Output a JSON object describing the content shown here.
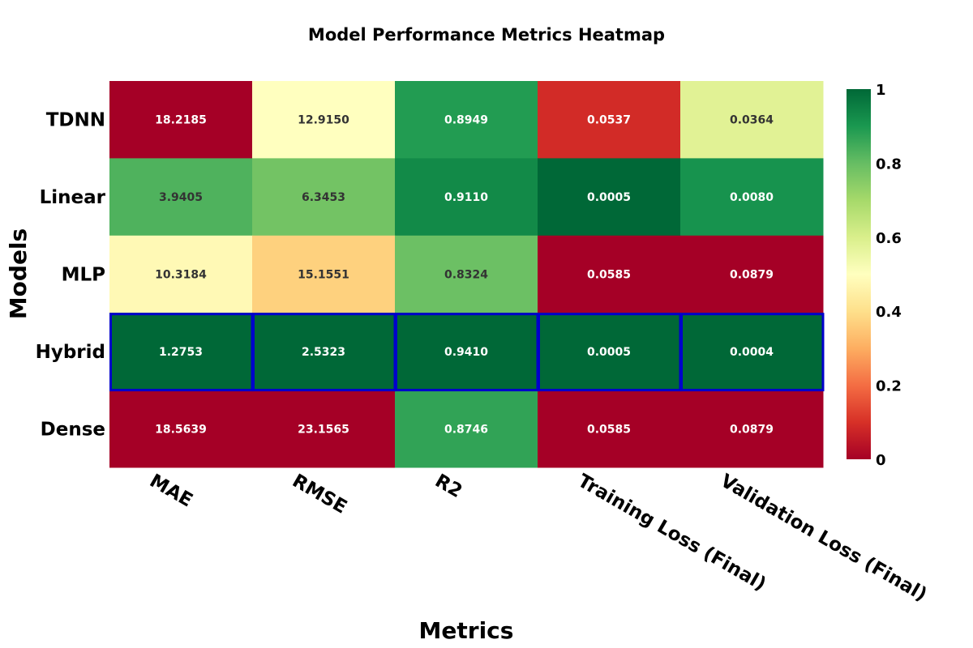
{
  "chart_data": {
    "type": "heatmap",
    "title": "Model Performance Metrics Heatmap",
    "xlabel": "Metrics",
    "ylabel": "Models",
    "x_categories": [
      "MAE",
      "RMSE",
      "R2",
      "Training Loss (Final)",
      "Validation Loss (Final)"
    ],
    "y_categories": [
      "TDNN",
      "Linear",
      "MLP",
      "Hybrid",
      "Dense"
    ],
    "values": [
      [
        18.2185,
        12.915,
        0.8949,
        0.0537,
        0.0364
      ],
      [
        3.9405,
        6.3453,
        0.911,
        0.0005,
        0.008
      ],
      [
        10.3184,
        15.1551,
        0.8324,
        0.0585,
        0.0879
      ],
      [
        1.2753,
        2.5323,
        0.941,
        0.0005,
        0.0004
      ],
      [
        18.5639,
        23.1565,
        0.8746,
        0.0585,
        0.0879
      ]
    ],
    "cell_labels": [
      [
        "18.2185",
        "12.9150",
        "0.8949",
        "0.0537",
        "0.0364"
      ],
      [
        "3.9405",
        "6.3453",
        "0.9110",
        "0.0005",
        "0.0080"
      ],
      [
        "10.3184",
        "15.1551",
        "0.8324",
        "0.0585",
        "0.0879"
      ],
      [
        "1.2753",
        "2.5323",
        "0.9410",
        "0.0005",
        "0.0004"
      ],
      [
        "18.5639",
        "23.1565",
        "0.8746",
        "0.0585",
        "0.0879"
      ]
    ],
    "color_scores": [
      [
        0.0,
        0.5,
        0.89,
        0.09,
        0.58
      ],
      [
        0.83,
        0.78,
        0.93,
        1.0,
        0.91
      ],
      [
        0.48,
        0.37,
        0.79,
        0.0,
        0.0
      ],
      [
        1.0,
        1.0,
        1.0,
        1.0,
        1.0
      ],
      [
        0.0,
        0.0,
        0.87,
        0.0,
        0.0
      ]
    ],
    "colorbar": {
      "range": [
        0,
        1
      ],
      "ticks": [
        "0",
        "0.2",
        "0.4",
        "0.6",
        "0.8",
        "1"
      ],
      "colorscale": "RdYlGn"
    },
    "highlight_row": "Hybrid",
    "highlight_color": "#0000cc",
    "grid": false
  }
}
